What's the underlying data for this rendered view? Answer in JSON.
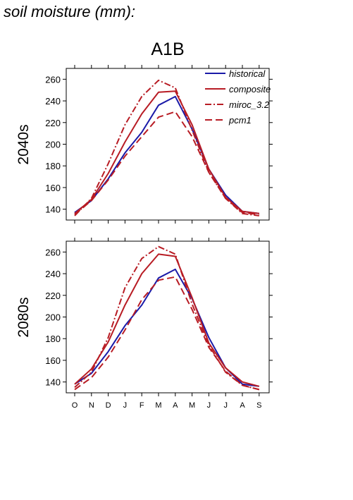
{
  "heading": "soil moisture (mm):",
  "scenario": "A1B",
  "colors": {
    "historical": "#1a1aa8",
    "model": "#b81c24"
  },
  "chart_data": {
    "type": "line",
    "title": "A1B",
    "categories": [
      "O",
      "N",
      "D",
      "J",
      "F",
      "M",
      "A",
      "M",
      "J",
      "J",
      "A",
      "S"
    ],
    "y_ticks": [
      140,
      160,
      180,
      200,
      220,
      240,
      260
    ],
    "ylim": [
      130,
      270
    ],
    "grid": false,
    "legend_position": "top-right",
    "legend": [
      {
        "label": "historical",
        "dash": "solid",
        "color": "#1a1aa8"
      },
      {
        "label": "composite",
        "dash": "solid",
        "color": "#b81c24"
      },
      {
        "label": "miroc_3.2",
        "dash": "dashdot",
        "color": "#b81c24"
      },
      {
        "label": "pcm1",
        "dash": "dashed",
        "color": "#b81c24"
      }
    ],
    "panels": [
      {
        "label": "2040s",
        "series": [
          {
            "name": "historical",
            "values": [
              137,
              148,
              168,
              192,
              211,
              236,
              244,
              214,
              177,
              153,
              138,
              136
            ]
          },
          {
            "name": "composite",
            "values": [
              136,
              149,
              173,
              202,
              228,
              248,
              249,
              218,
              177,
              151,
              138,
              136
            ]
          },
          {
            "name": "miroc_3.2",
            "values": [
              134,
              150,
              182,
              218,
              244,
              259,
              252,
              213,
              174,
              150,
              136,
              134
            ]
          },
          {
            "name": "pcm1",
            "values": [
              135,
              148,
              167,
              189,
              207,
              225,
              230,
              207,
              174,
              150,
              137,
              135
            ]
          }
        ]
      },
      {
        "label": "2080s",
        "series": [
          {
            "name": "historical",
            "values": [
              138,
              148,
              168,
              192,
              211,
              236,
              244,
              217,
              181,
              153,
              138,
              136
            ]
          },
          {
            "name": "composite",
            "values": [
              138,
              152,
              177,
              211,
              240,
              258,
              256,
              218,
              176,
              153,
              140,
              136
            ]
          },
          {
            "name": "miroc_3.2",
            "values": [
              135,
              149,
              181,
              227,
              254,
              265,
              258,
              212,
              174,
              149,
              137,
              133
            ]
          },
          {
            "name": "pcm1",
            "values": [
              133,
              144,
              163,
              188,
              216,
              234,
              237,
              207,
              172,
              150,
              137,
              133
            ]
          }
        ]
      }
    ]
  }
}
